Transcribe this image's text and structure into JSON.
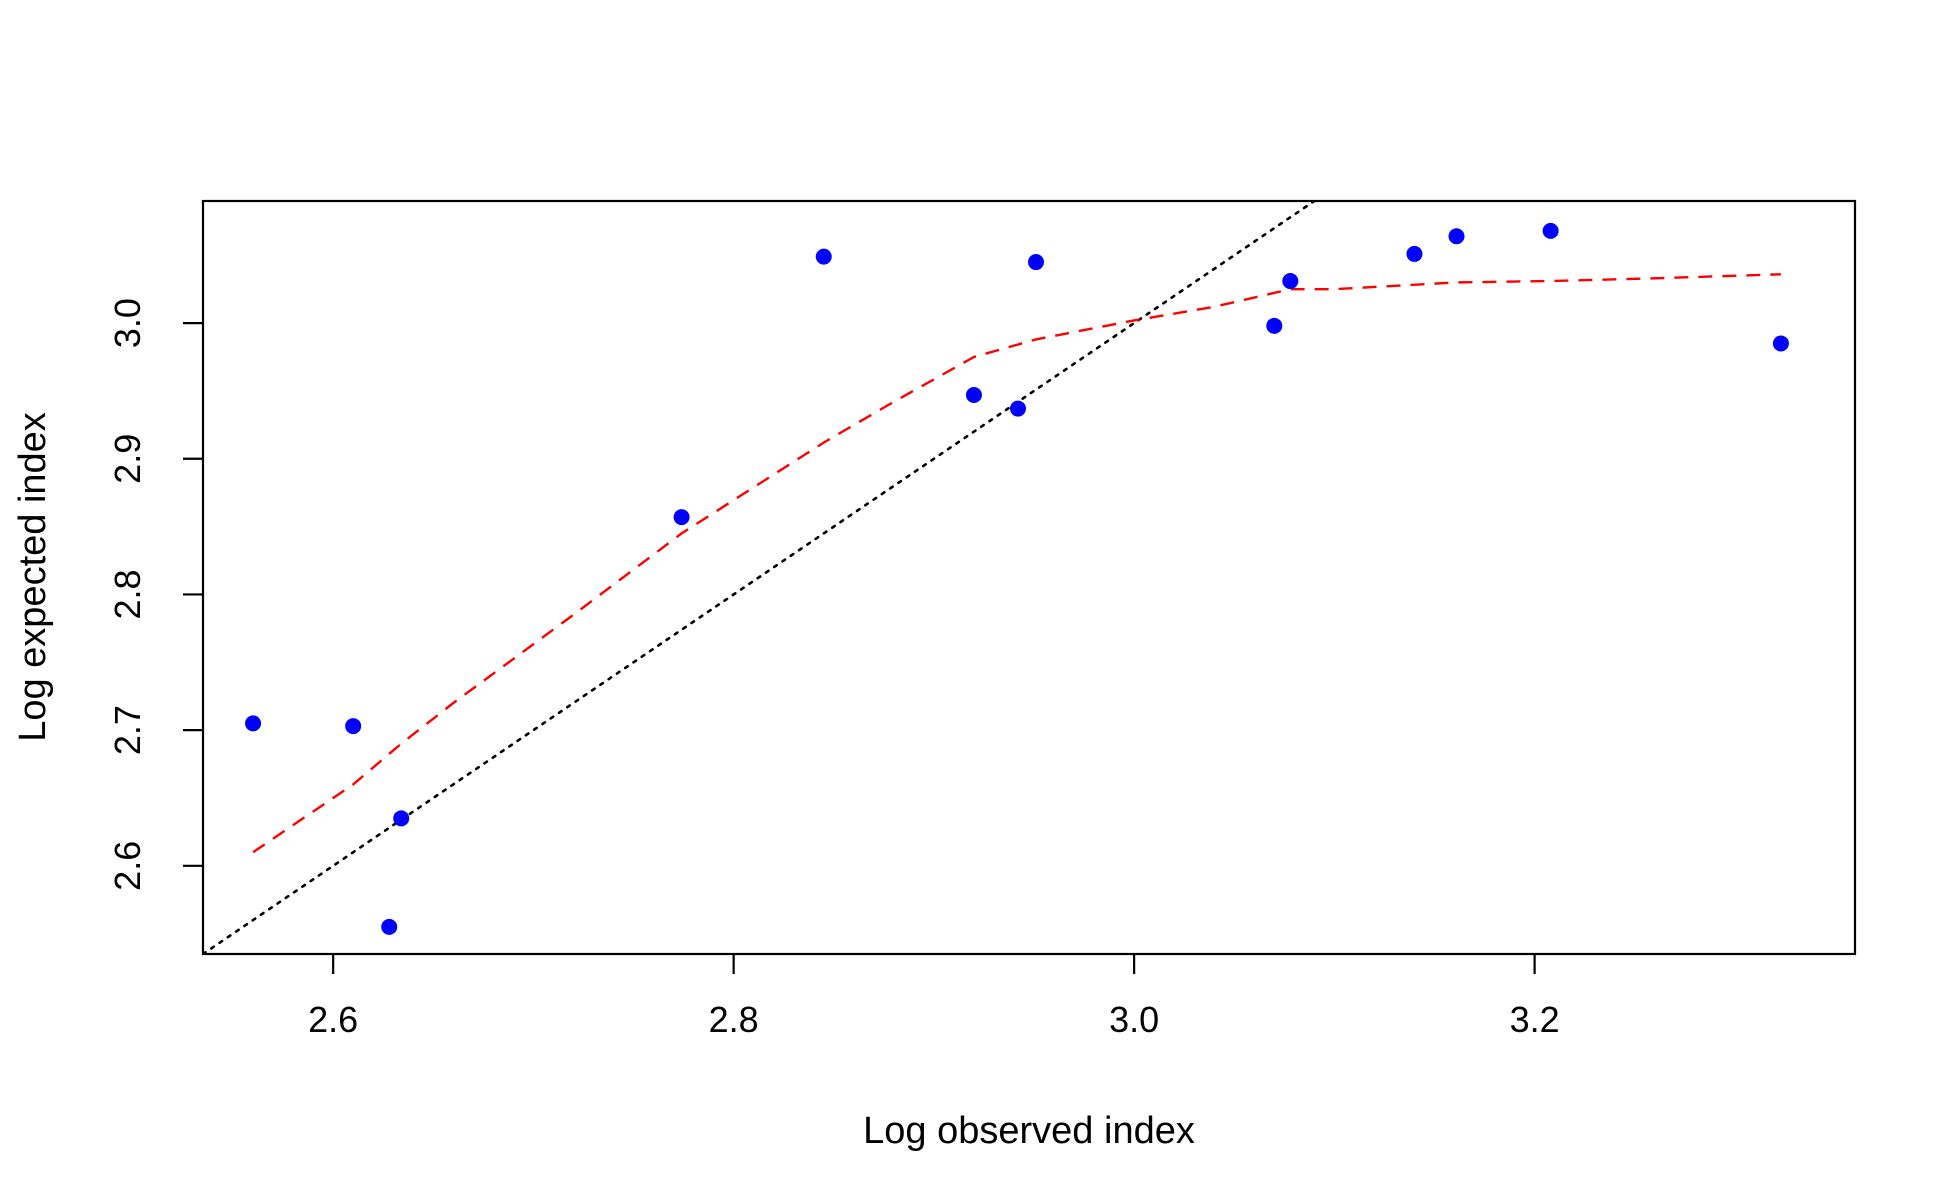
{
  "chart_data": {
    "type": "scatter",
    "title": "",
    "xlabel": "Log observed index",
    "ylabel": "Log expected index",
    "xlim": [
      2.535,
      3.36
    ],
    "ylim": [
      2.535,
      3.09
    ],
    "xticks": [
      2.6,
      2.8,
      3.0,
      3.2
    ],
    "xtick_labels": [
      "2.6",
      "2.8",
      "3.0",
      "3.2"
    ],
    "yticks": [
      2.6,
      2.7,
      2.8,
      2.9,
      3.0
    ],
    "ytick_labels": [
      "2.6",
      "2.7",
      "2.8",
      "2.9",
      "3.0"
    ],
    "grid": false,
    "colors": {
      "points": "#0000ff",
      "smooth_line": "#ff0000",
      "reference_line": "#000000",
      "frame": "#000000"
    },
    "points": {
      "x": [
        2.56,
        2.61,
        2.628,
        2.634,
        2.774,
        2.845,
        2.92,
        2.942,
        2.951,
        3.07,
        3.078,
        3.14,
        3.161,
        3.208,
        3.323
      ],
      "y": [
        2.705,
        2.703,
        2.555,
        2.635,
        2.857,
        3.049,
        2.947,
        2.937,
        3.045,
        2.998,
        3.031,
        3.051,
        3.064,
        3.068,
        2.985
      ]
    },
    "smooth_line": {
      "style": "dashed",
      "x": [
        2.56,
        2.61,
        2.634,
        2.66,
        2.72,
        2.774,
        2.845,
        2.88,
        2.92,
        2.951,
        3.0,
        3.04,
        3.078,
        3.1,
        3.161,
        3.208,
        3.26,
        3.323
      ],
      "y": [
        2.61,
        2.66,
        2.69,
        2.72,
        2.785,
        2.845,
        2.912,
        2.942,
        2.975,
        2.988,
        3.002,
        3.012,
        3.025,
        3.025,
        3.03,
        3.031,
        3.033,
        3.036
      ]
    },
    "reference_line": {
      "style": "dotted",
      "slope": 1,
      "intercept": 0
    }
  }
}
